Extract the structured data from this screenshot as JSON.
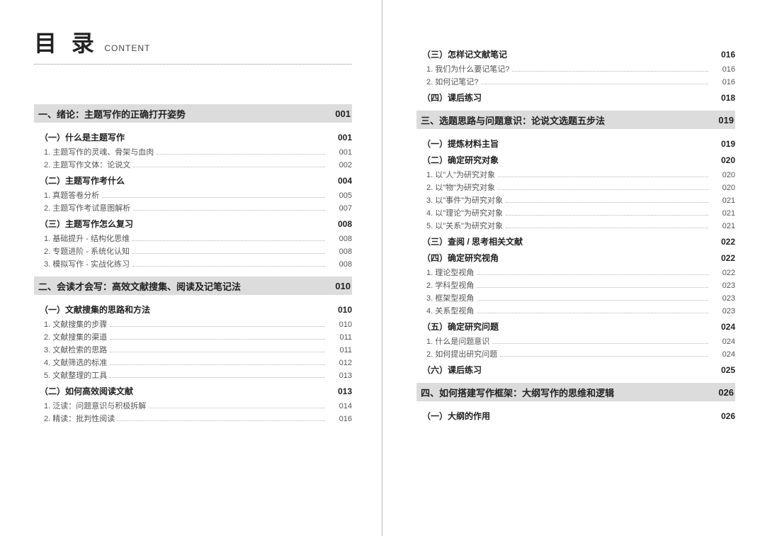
{
  "header": {
    "main": "目 录",
    "sub": "CONTENT"
  },
  "left": [
    {
      "type": "chapter",
      "title": "一、绪论：主题写作的正确打开姿势",
      "page": "001"
    },
    {
      "type": "section",
      "title": "（一）什么是主题写作",
      "page": "001"
    },
    {
      "type": "item",
      "title": "1. 主题写作的灵魂、骨架与血肉",
      "page": "001"
    },
    {
      "type": "item",
      "title": "2. 主题写作文体：论说文",
      "page": "002"
    },
    {
      "type": "section",
      "title": "（二）主题写作考什么",
      "page": "004"
    },
    {
      "type": "item",
      "title": "1. 真题答卷分析",
      "page": "005"
    },
    {
      "type": "item",
      "title": "2. 主题写作考试意图解析",
      "page": "007"
    },
    {
      "type": "section",
      "title": "（三）主题写作怎么复习",
      "page": "008"
    },
    {
      "type": "item",
      "title": "1. 基础提升 - 结构化思维",
      "page": "008"
    },
    {
      "type": "item",
      "title": "2. 专题进阶 - 系统化认知",
      "page": "008"
    },
    {
      "type": "item",
      "title": "3. 模拟写作 - 实战化练习",
      "page": "008"
    },
    {
      "type": "chapter",
      "title": "二、会读才会写：高效文献搜集、阅读及记笔记法",
      "page": "010"
    },
    {
      "type": "section",
      "title": "（一）文献搜集的思路和方法",
      "page": "010"
    },
    {
      "type": "item",
      "title": "1. 文献搜集的步骤",
      "page": "010"
    },
    {
      "type": "item",
      "title": "2. 文献搜集的渠道",
      "page": "011"
    },
    {
      "type": "item",
      "title": "3. 文献检索的思路",
      "page": "011"
    },
    {
      "type": "item",
      "title": "4. 文献筛选的标准",
      "page": "012"
    },
    {
      "type": "item",
      "title": "5. 文献整理的工具",
      "page": "013"
    },
    {
      "type": "section",
      "title": "（二）如何高效阅读文献",
      "page": "013"
    },
    {
      "type": "item",
      "title": "1. 泛读：问题意识与积极拆解",
      "page": "014"
    },
    {
      "type": "item",
      "title": "2. 精读：批判性阅读",
      "page": "016"
    }
  ],
  "right": [
    {
      "type": "section",
      "title": "（三）怎样记文献笔记",
      "page": "016"
    },
    {
      "type": "item",
      "title": "1. 我们为什么要记笔记?",
      "page": "016"
    },
    {
      "type": "item",
      "title": "2. 如何记笔记?",
      "page": "016"
    },
    {
      "type": "section",
      "title": "（四）课后练习",
      "page": "018"
    },
    {
      "type": "chapter",
      "title": "三、选题思路与问题意识：论说文选题五步法",
      "page": "019"
    },
    {
      "type": "section",
      "title": "（一）提炼材料主旨",
      "page": "019"
    },
    {
      "type": "section",
      "title": "（二）确定研究对象",
      "page": "020"
    },
    {
      "type": "item",
      "title": "1. 以\"人\"为研究对象",
      "page": "020"
    },
    {
      "type": "item",
      "title": "2. 以\"物\"为研究对象",
      "page": "020"
    },
    {
      "type": "item",
      "title": "3. 以\"事件\"为研究对象",
      "page": "021"
    },
    {
      "type": "item",
      "title": "4. 以\"理论\"为研究对象",
      "page": "021"
    },
    {
      "type": "item",
      "title": "5. 以\"关系\"为研究对象",
      "page": "021"
    },
    {
      "type": "section",
      "title": "（三）查阅 / 思考相关文献",
      "page": "022"
    },
    {
      "type": "section",
      "title": "（四）确定研究视角",
      "page": "022"
    },
    {
      "type": "item",
      "title": "1. 理论型视角",
      "page": "022"
    },
    {
      "type": "item",
      "title": "2. 学科型视角",
      "page": "023"
    },
    {
      "type": "item",
      "title": "3. 框架型视角",
      "page": "023"
    },
    {
      "type": "item",
      "title": "4. 关系型视角",
      "page": "023"
    },
    {
      "type": "section",
      "title": "（五）确定研究问题",
      "page": "024"
    },
    {
      "type": "item",
      "title": "1. 什么是问题意识",
      "page": "024"
    },
    {
      "type": "item",
      "title": "2. 如何提出研究问题",
      "page": "024"
    },
    {
      "type": "section",
      "title": "（六）课后练习",
      "page": "025"
    },
    {
      "type": "chapter",
      "title": "四、如何搭建写作框架：大纲写作的思维和逻辑",
      "page": "026"
    },
    {
      "type": "section",
      "title": "（一）大纲的作用",
      "page": "026"
    }
  ]
}
